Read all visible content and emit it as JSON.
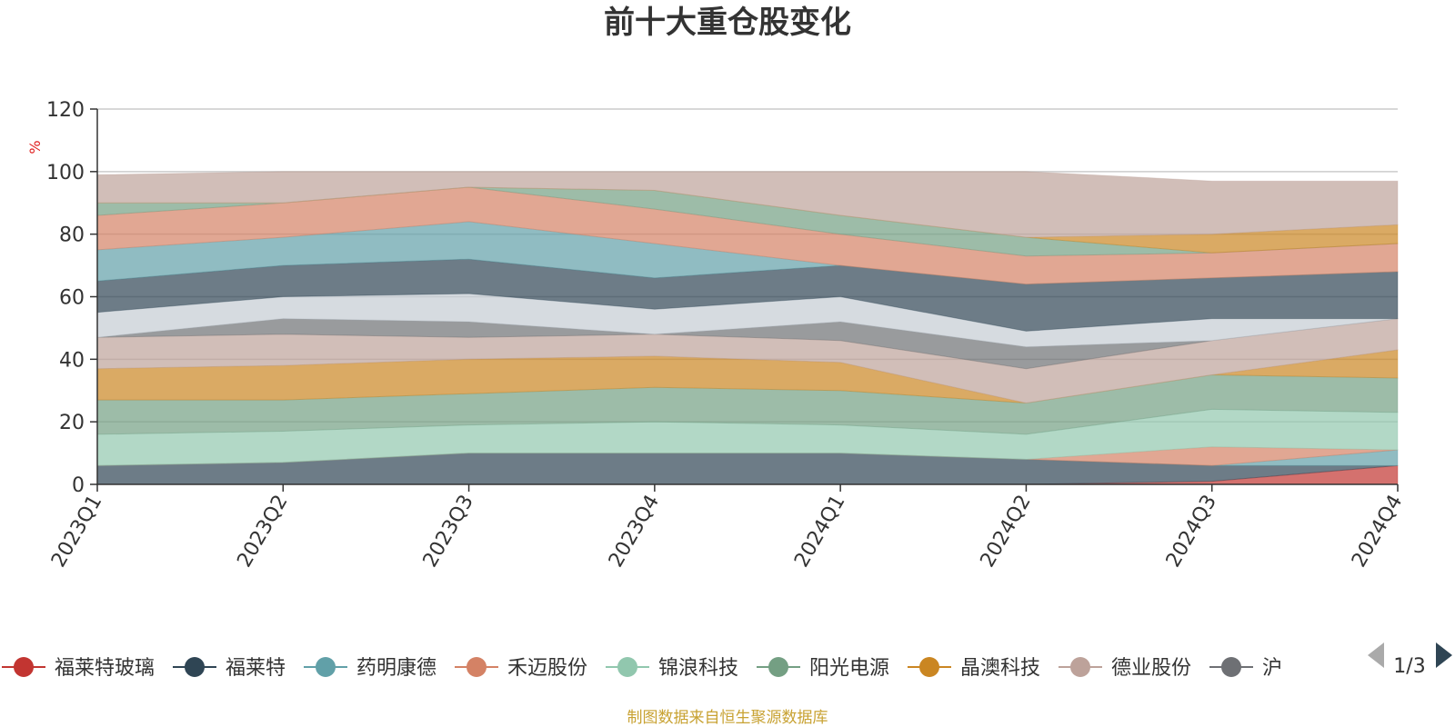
{
  "chart_data": {
    "type": "area",
    "stacked": true,
    "title": "前十大重仓股变化",
    "ylabel": "%",
    "ylim": [
      0,
      120
    ],
    "yticks": [
      0,
      20,
      40,
      60,
      80,
      100,
      120
    ],
    "grid": true,
    "categories": [
      "2023Q1",
      "2023Q2",
      "2023Q3",
      "2023Q4",
      "2024Q1",
      "2024Q2",
      "2024Q3",
      "2024Q4"
    ],
    "series": [
      {
        "name": "福莱特玻璃",
        "color": "#c23531",
        "values": [
          0,
          0,
          0,
          0,
          0,
          0,
          1,
          6
        ]
      },
      {
        "name": "福莱特",
        "color": "#2f4554",
        "values": [
          6,
          7,
          10,
          10,
          10,
          8,
          5,
          0
        ]
      },
      {
        "name": "药明康德",
        "color": "#61a0a8",
        "values": [
          0,
          0,
          0,
          0,
          0,
          0,
          0,
          5
        ]
      },
      {
        "name": "禾迈股份",
        "color": "#d48265",
        "values": [
          0,
          0,
          0,
          0,
          0,
          0,
          6,
          0
        ]
      },
      {
        "name": "锦浪科技",
        "color": "#91c7ae",
        "values": [
          10,
          10,
          9,
          10,
          9,
          8,
          12,
          12
        ]
      },
      {
        "name": "阳光电源",
        "color": "#749f83",
        "values": [
          11,
          10,
          10,
          11,
          11,
          10,
          11,
          11
        ]
      },
      {
        "name": "晶澳科技",
        "color": "#ca8622",
        "values": [
          10,
          11,
          11,
          10,
          9,
          0,
          0,
          9
        ]
      },
      {
        "name": "德业股份",
        "color": "#bda29a",
        "values": [
          10,
          10,
          7,
          7,
          7,
          11,
          11,
          10
        ]
      },
      {
        "name": "",
        "color": "#6e7074",
        "values": [
          0,
          5,
          5,
          0,
          6,
          7,
          0,
          0
        ]
      },
      {
        "name": "",
        "color": "#c4ccd3",
        "values": [
          8,
          7,
          9,
          8,
          8,
          5,
          7,
          0
        ]
      },
      {
        "name": "",
        "color": "#2f4554",
        "values": [
          10,
          10,
          11,
          10,
          10,
          15,
          13,
          15
        ]
      },
      {
        "name": "",
        "color": "#61a0a8",
        "values": [
          10,
          9,
          12,
          11,
          0,
          0,
          0,
          0
        ]
      },
      {
        "name": "",
        "color": "#d48265",
        "values": [
          11,
          11,
          11,
          11,
          10,
          9,
          8,
          9
        ]
      },
      {
        "name": "",
        "color": "#749f83",
        "values": [
          4,
          0,
          0,
          6,
          6,
          6,
          0,
          0
        ]
      },
      {
        "name": "",
        "color": "#ca8622",
        "values": [
          0,
          0,
          0,
          0,
          0,
          0,
          6,
          6
        ]
      },
      {
        "name": "",
        "color": "#bda29a",
        "values": [
          9,
          10,
          5,
          6,
          14,
          21,
          17,
          14
        ]
      }
    ]
  },
  "legend": {
    "items": [
      {
        "label": "福莱特玻璃",
        "color": "#c23531"
      },
      {
        "label": "福莱特",
        "color": "#2f4554"
      },
      {
        "label": "药明康德",
        "color": "#61a0a8"
      },
      {
        "label": "禾迈股份",
        "color": "#d48265"
      },
      {
        "label": "锦浪科技",
        "color": "#91c7ae"
      },
      {
        "label": "阳光电源",
        "color": "#749f83"
      },
      {
        "label": "晶澳科技",
        "color": "#ca8622"
      },
      {
        "label": "德业股份",
        "color": "#bda29a"
      },
      {
        "label": "沪",
        "color": "#6e7074"
      }
    ],
    "page": "1/3",
    "prev_icon": "triangle-left-icon",
    "next_icon": "triangle-right-icon"
  },
  "footer": {
    "source": "制图数据来自恒生聚源数据库"
  }
}
